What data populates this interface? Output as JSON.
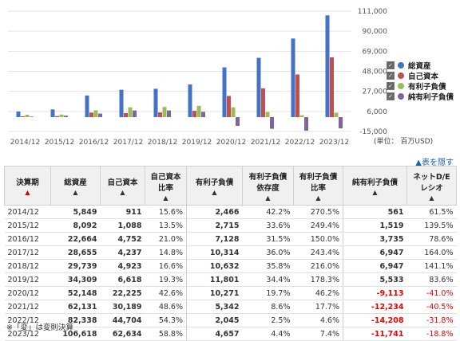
{
  "chart_data": {
    "type": "bar",
    "categories": [
      "2014/12",
      "2015/12",
      "2016/12",
      "2017/12",
      "2018/12",
      "2019/12",
      "2020/12",
      "2021/12",
      "2022/12",
      "2023/12"
    ],
    "series": [
      {
        "name": "総資産",
        "color": "#4472c4",
        "values": [
          5849,
          8092,
          22664,
          28655,
          29739,
          34309,
          52148,
          62131,
          82338,
          106618
        ]
      },
      {
        "name": "自己資本",
        "color": "#c0504d",
        "values": [
          911,
          1088,
          4752,
          4237,
          4923,
          6618,
          22225,
          30189,
          44704,
          62634
        ]
      },
      {
        "name": "有利子負債",
        "color": "#9bbb59",
        "values": [
          2466,
          2715,
          7128,
          10314,
          10632,
          11801,
          10271,
          5342,
          2045,
          4657
        ]
      },
      {
        "name": "純有利子負債",
        "color": "#8064a2",
        "values": [
          561,
          1519,
          3735,
          6947,
          6947,
          5533,
          -9113,
          -12234,
          -14208,
          -11741
        ]
      }
    ],
    "yticks": [
      "111,000",
      "90,000",
      "69,000",
      "48,000",
      "27,000",
      "6,000",
      "-15,000"
    ],
    "ylim": [
      -15000,
      111000
    ],
    "unit_label": "(単位： 百万USD)"
  },
  "hide_link": "▲表を隠す",
  "table": {
    "headers": [
      {
        "label": "決算期",
        "arrow": "▲",
        "active": true
      },
      {
        "label": "総資産",
        "arrow": "▲"
      },
      {
        "label": "自己資本",
        "arrow": "▲"
      },
      {
        "label": "自己資本比率",
        "arrow": "▲"
      },
      {
        "label": "有利子負債",
        "arrow": "▲"
      },
      {
        "label": "有利子負債依存度",
        "arrow": "▲"
      },
      {
        "label": "有利子負債比率",
        "arrow": "▲"
      },
      {
        "label": "純有利子負債",
        "arrow": "▲"
      },
      {
        "label": "ネットD/Eレシオ",
        "arrow": "▲"
      }
    ],
    "rows": [
      [
        "2014/12",
        "5,849",
        "911",
        "15.6%",
        "2,466",
        "42.2%",
        "270.5%",
        "561",
        "61.5%"
      ],
      [
        "2015/12",
        "8,092",
        "1,088",
        "13.5%",
        "2,715",
        "33.6%",
        "249.4%",
        "1,519",
        "139.5%"
      ],
      [
        "2016/12",
        "22,664",
        "4,752",
        "21.0%",
        "7,128",
        "31.5%",
        "150.0%",
        "3,735",
        "78.6%"
      ],
      [
        "2017/12",
        "28,655",
        "4,237",
        "14.8%",
        "10,314",
        "36.0%",
        "243.4%",
        "6,947",
        "164.0%"
      ],
      [
        "2018/12",
        "29,739",
        "4,923",
        "16.6%",
        "10,632",
        "35.8%",
        "216.0%",
        "6,947",
        "141.1%"
      ],
      [
        "2019/12",
        "34,309",
        "6,618",
        "19.3%",
        "11,801",
        "34.4%",
        "178.3%",
        "5,533",
        "83.6%"
      ],
      [
        "2020/12",
        "52,148",
        "22,225",
        "42.6%",
        "10,271",
        "19.7%",
        "46.2%",
        "-9,113",
        "-41.0%"
      ],
      [
        "2021/12",
        "62,131",
        "30,189",
        "48.6%",
        "5,342",
        "8.6%",
        "17.7%",
        "-12,234",
        "-40.5%"
      ],
      [
        "2022/12",
        "82,338",
        "44,704",
        "54.3%",
        "2,045",
        "2.5%",
        "4.6%",
        "-14,208",
        "-31.8%"
      ],
      [
        "2023/12",
        "106,618",
        "62,634",
        "58.8%",
        "4,657",
        "4.4%",
        "7.4%",
        "-11,741",
        "-18.8%"
      ]
    ]
  },
  "footnote": "※「変」は変則決算"
}
